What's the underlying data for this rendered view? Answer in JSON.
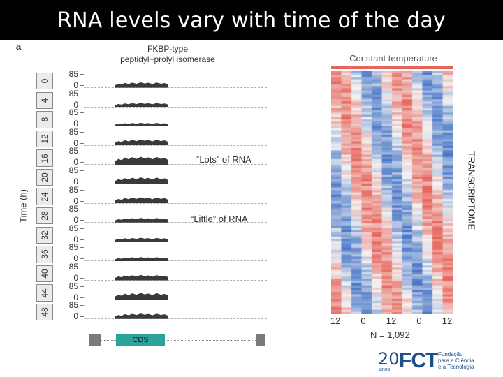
{
  "slide": {
    "title": "RNA levels vary with time of the day",
    "panel_letter": "a"
  },
  "figure": {
    "gene_title_line1": "FKBP-type",
    "gene_title_line2": "peptidyl−prolyl isomerase",
    "y_axis_label": "Time (h)",
    "hours": [
      "0",
      "4",
      "8",
      "12",
      "16",
      "20",
      "24",
      "28",
      "32",
      "36",
      "40",
      "44",
      "48"
    ],
    "track_max_label": "85",
    "track_min_label": "0",
    "track_levels": [
      0.45,
      0.25,
      0.2,
      0.5,
      0.7,
      0.55,
      0.5,
      0.35,
      0.25,
      0.25,
      0.4,
      0.6,
      0.4
    ],
    "annotation_lots": "“Lots” of RNA",
    "annotation_little": "“Little” of RNA",
    "cds_label": "CDS"
  },
  "heatmap": {
    "title": "Constant temperature",
    "x_ticks": [
      "12",
      "0",
      "12",
      "0",
      "12"
    ],
    "n_label": "N = 1,092",
    "colors": {
      "high": "#e8645a",
      "low": "#4a78c8",
      "mid": "#f2f2f2"
    }
  },
  "side_label": "TRANSCRIPTOME",
  "logo": {
    "years": "20",
    "years_word": "anos",
    "acronym": "FCT",
    "text_line1": "Fundação",
    "text_line2": "para a Ciência",
    "text_line3": "e a Tecnologia"
  }
}
